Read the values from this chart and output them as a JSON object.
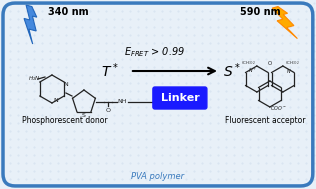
{
  "bg_color": "#e8f0f8",
  "border_color": "#3a7abd",
  "border_width": 2.5,
  "title_bottom": "PVA polymer",
  "label_left": "Phosphorescent donor",
  "label_right": "Fluorescent acceptor",
  "label_340": "340 nm",
  "label_590": "590 nm",
  "T_star": "T*",
  "S_star": "S*",
  "efret_label": "E",
  "efret_sub": "FRET",
  "efret_val": " > 0.99",
  "linker_text": "Linker",
  "linker_bg": "#1a1aff",
  "linker_text_color": "white",
  "arrow_color": "black",
  "lightning_blue": [
    "#4488dd",
    "#2266bb"
  ],
  "lightning_orange": [
    "#ffaa00",
    "#ff8800"
  ],
  "dot_bg": "#dde8f5",
  "struct_color": "#222222",
  "font_bold": "bold"
}
